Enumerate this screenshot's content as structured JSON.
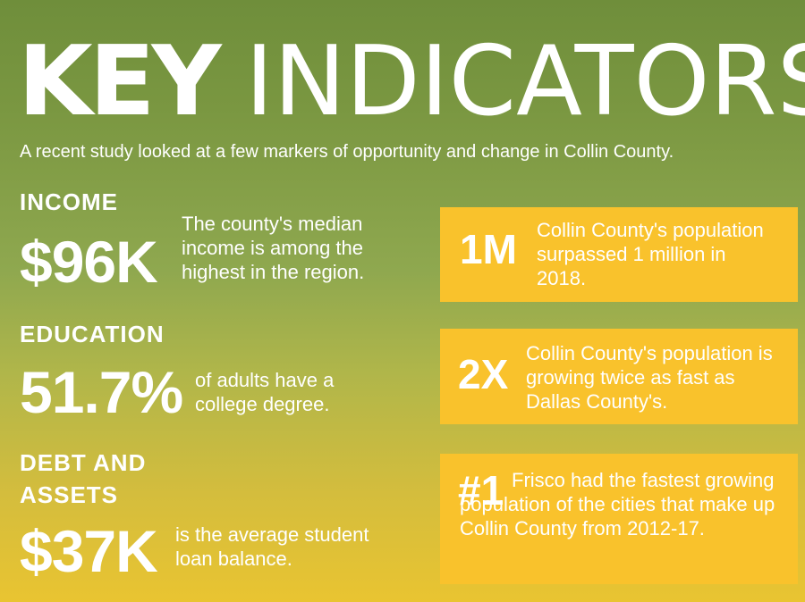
{
  "header": {
    "title_bold": "KEY",
    "title_light": "INDICATORS",
    "subtitle": "A recent study looked at a few markers of opportunity and change in Collin County."
  },
  "indicators": [
    {
      "category": "INCOME",
      "figure": "$96K",
      "description": "The county's median income is among the highest in the region."
    },
    {
      "category": "EDUCATION",
      "figure": "51.7%",
      "description": "of adults have a college degree."
    },
    {
      "category": "DEBT AND ASSETS",
      "figure": "$37K",
      "description": "is the average student loan balance."
    }
  ],
  "cards": [
    {
      "figure": "1M",
      "text": "Collin County's population surpassed 1 million in 2018."
    },
    {
      "figure": "2X",
      "text": "Collin County's population is growing twice as fast as Dallas County's."
    },
    {
      "figure": "#1",
      "text": "Frisco had the fastest growing population of the cities that make up Collin County from 2012-17."
    }
  ],
  "colors": {
    "card": "#f9c22c",
    "text": "#ffffff",
    "background_top": "#6f8e3b",
    "background_bottom": "#e9c431"
  }
}
